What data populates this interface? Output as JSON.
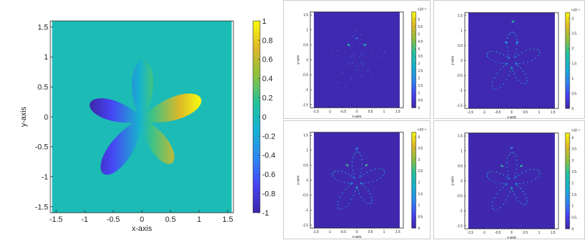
{
  "colors": {
    "background_teal": "#19bca6",
    "background_dark": "#3b2fb5",
    "colormap": [
      "#3e26a8",
      "#4743f5",
      "#2e88f3",
      "#15b1d4",
      "#22c29f",
      "#8cc13d",
      "#ddb828",
      "#f9fb0e"
    ]
  },
  "chart_data": [
    {
      "id": "main",
      "type": "heatmap",
      "title": "",
      "xlabel": "x-axis",
      "ylabel": "y-axis",
      "xlim": [
        -1.6,
        1.6
      ],
      "ylim": [
        -1.6,
        1.6
      ],
      "xticks": [
        -1.5,
        -1,
        -0.5,
        0,
        0.5,
        1,
        1.5
      ],
      "xtick_labels": [
        "-1.5",
        "-1",
        "-0.5",
        "0",
        "0.5",
        "1",
        "1.5"
      ],
      "yticks": [
        1.5,
        1,
        0.5,
        0,
        -0.5,
        -1,
        -1.5
      ],
      "ytick_labels": [
        "1.5",
        "1",
        "0.5",
        "0",
        "-0.5",
        "-1",
        "-1.5"
      ],
      "colorbar_range": [
        -1,
        1
      ],
      "colorbar_ticks": [
        1,
        0.8,
        0.6,
        0.4,
        0.2,
        0,
        -0.2,
        -0.4,
        -0.6,
        -0.8,
        -1
      ],
      "colorbar_labels": [
        "1",
        "0.8",
        "0.6",
        "0.4",
        "0.2",
        "0",
        "-0.2",
        "-0.4",
        "-0.6",
        "-0.8",
        "-1"
      ],
      "colorbar_exponent": "",
      "field_domain_x": [
        -1.57,
        1.57
      ],
      "background_value": 0.02,
      "shape": {
        "kind": "star-flower",
        "petals": 5,
        "hotspots": []
      }
    },
    {
      "id": "err1",
      "type": "heatmap",
      "title": "",
      "xlabel": "x-axis",
      "ylabel": "y-axis",
      "xlim": [
        -1.7,
        1.7
      ],
      "ylim": [
        -1.6,
        1.6
      ],
      "xticks": [
        -1.5,
        -1,
        -0.5,
        0,
        0.5,
        1,
        1.5
      ],
      "xtick_labels": [
        "-1.5",
        "-1",
        "-0.5",
        "0",
        "0.5",
        "1",
        "1.5"
      ],
      "yticks": [
        1.5,
        1,
        0.5,
        0,
        -0.5,
        -1,
        -1.5
      ],
      "ytick_labels": [
        "1.5",
        "1",
        "0.5",
        "0",
        "-0.5",
        "-1",
        "-1.5"
      ],
      "colorbar_range": [
        0,
        6.5
      ],
      "colorbar_ticks": [
        6,
        5.5,
        5,
        4.5,
        4,
        3.5,
        3,
        2.5,
        2,
        1.5,
        1,
        0.5,
        0
      ],
      "colorbar_labels": [
        "6",
        "5.5",
        "5",
        "4.5",
        "4",
        "3.5",
        "3",
        "2.5",
        "2",
        "1.5",
        "1",
        "0.5",
        "0"
      ],
      "colorbar_exponent": "×10⁻⁶",
      "field_domain_x": [
        -1.57,
        1.57
      ],
      "background_value": 0.1,
      "shape": {
        "kind": "outline-points",
        "petals": 5,
        "hotspots": [
          [
            -0.3,
            0.5,
            3.5
          ],
          [
            0.3,
            0.5,
            3.5
          ],
          [
            0,
            0.72,
            1.5
          ]
        ]
      }
    },
    {
      "id": "err2",
      "type": "heatmap",
      "title": "",
      "xlabel": "x-axis",
      "ylabel": "y-axis",
      "xlim": [
        -1.7,
        1.7
      ],
      "ylim": [
        -1.6,
        1.6
      ],
      "xticks": [
        -1.5,
        -1,
        -0.5,
        0,
        0.5,
        1,
        1.5
      ],
      "xtick_labels": [
        "-1.5",
        "-1",
        "-0.5",
        "0",
        "0.5",
        "1",
        "1.5"
      ],
      "yticks": [
        1.5,
        1,
        0.5,
        0,
        -0.5,
        -1,
        -1.5
      ],
      "ytick_labels": [
        "1.5",
        "1",
        "0.5",
        "0",
        "-0.5",
        "-1",
        "-1.5"
      ],
      "colorbar_range": [
        0,
        3.2
      ],
      "colorbar_ticks": [
        3,
        2.5,
        2,
        1.5,
        1,
        0.5,
        0
      ],
      "colorbar_labels": [
        "3",
        "2.5",
        "2",
        "1.5",
        "1",
        "0.5",
        "0"
      ],
      "colorbar_exponent": "×10⁻⁶",
      "field_domain_x": [
        -1.57,
        1.57
      ],
      "background_value": 0.05,
      "shape": {
        "kind": "outline-strokes",
        "petals": 5,
        "hotspots": [
          [
            0.05,
            1.3,
            1.8
          ],
          [
            -0.2,
            0.6,
            1.2
          ],
          [
            0.2,
            0.6,
            1.2
          ]
        ]
      }
    },
    {
      "id": "err3",
      "type": "heatmap",
      "title": "",
      "xlabel": "x-axis",
      "ylabel": "y-axis",
      "xlim": [
        -1.7,
        1.7
      ],
      "ylim": [
        -1.6,
        1.6
      ],
      "xticks": [
        -1.5,
        -1,
        -0.5,
        0,
        0.5,
        1,
        1.5
      ],
      "xtick_labels": [
        "-1.5",
        "-1",
        "-0.5",
        "0",
        "0.5",
        "1",
        "1.5"
      ],
      "yticks": [
        1.5,
        1,
        0.5,
        0,
        -0.5,
        -1,
        -1.5
      ],
      "ytick_labels": [
        "1.5",
        "1",
        "0.5",
        "0",
        "-0.5",
        "-1",
        "-1.5"
      ],
      "colorbar_range": [
        0,
        4.2
      ],
      "colorbar_ticks": [
        4,
        3.5,
        3,
        2.5,
        2,
        1.5,
        1,
        0.5,
        0
      ],
      "colorbar_labels": [
        "4",
        "3.5",
        "3",
        "2.5",
        "2",
        "1.5",
        "1",
        "0.5",
        "0"
      ],
      "colorbar_exponent": "×10⁻⁶",
      "field_domain_x": [
        -1.57,
        1.57
      ],
      "background_value": 0.05,
      "shape": {
        "kind": "outline-strokes",
        "petals": 5,
        "hotspots": [
          [
            -0.35,
            0.5,
            2.6
          ],
          [
            0.35,
            0.5,
            2.6
          ],
          [
            0,
            1.05,
            1.2
          ]
        ]
      }
    },
    {
      "id": "err4",
      "type": "heatmap",
      "title": "",
      "xlabel": "x-axis",
      "ylabel": "y-axis",
      "xlim": [
        -1.7,
        1.7
      ],
      "ylim": [
        -1.6,
        1.6
      ],
      "xticks": [
        -1.5,
        -1,
        -0.5,
        0,
        0.5,
        1,
        1.5
      ],
      "xtick_labels": [
        "-1.5",
        "-1",
        "-0.5",
        "0",
        "0.5",
        "1",
        "1.5"
      ],
      "yticks": [
        1.5,
        1,
        0.5,
        0,
        -0.5,
        -1,
        -1.5
      ],
      "ytick_labels": [
        "1.5",
        "1",
        "0.5",
        "0",
        "-0.5",
        "-1",
        "-1.5"
      ],
      "colorbar_range": [
        0,
        4.2
      ],
      "colorbar_ticks": [
        4,
        3.5,
        3,
        2.5,
        2,
        1.5,
        1,
        0.5,
        0
      ],
      "colorbar_labels": [
        "4",
        "3.5",
        "3",
        "2.5",
        "2",
        "1.5",
        "1",
        "0.5",
        "0"
      ],
      "colorbar_exponent": "×10⁻⁶",
      "field_domain_x": [
        -1.57,
        1.57
      ],
      "background_value": 0.05,
      "shape": {
        "kind": "outline-strokes",
        "petals": 5,
        "hotspots": [
          [
            -0.35,
            0.5,
            2.4
          ],
          [
            0.35,
            0.5,
            2.4
          ],
          [
            0,
            1.1,
            1.1
          ]
        ]
      }
    }
  ]
}
